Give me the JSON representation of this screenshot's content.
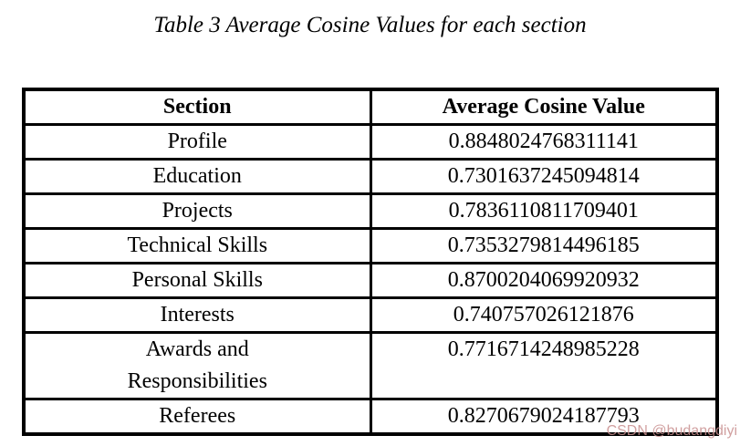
{
  "caption": "Table 3 Average Cosine Values for each section",
  "table": {
    "headers": [
      "Section",
      "Average Cosine Value"
    ],
    "rows": [
      {
        "section": "Profile",
        "value": "0.8848024768311141"
      },
      {
        "section": "Education",
        "value": "0.7301637245094814"
      },
      {
        "section": "Projects",
        "value": "0.7836110811709401"
      },
      {
        "section": "Technical Skills",
        "value": "0.7353279814496185"
      },
      {
        "section": "Personal Skills",
        "value": "0.8700204069920932"
      },
      {
        "section": "Interests",
        "value": "0.740757026121876"
      },
      {
        "section": "Awards and\nResponsibilities",
        "value": "0.7716714248985228"
      },
      {
        "section": "Referees",
        "value": "0.8270679024187793"
      }
    ]
  },
  "watermark": {
    "text": "CSDN @budangdiyi",
    "color": "#c99090"
  },
  "colors": {
    "border": "#000000",
    "background": "#ffffff",
    "text": "#000000"
  }
}
